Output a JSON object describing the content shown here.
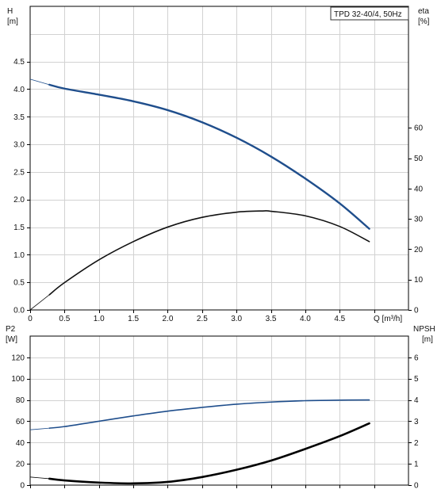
{
  "chart_data": [
    {
      "type": "line",
      "title": "TPD 32-40/4, 50Hz",
      "xlabel": "Q [m³/h]",
      "ylabel_left_name": "H",
      "ylabel_left_unit": "[m]",
      "ylabel_right_name": "eta",
      "ylabel_right_unit": "[%]",
      "xlim": [
        0,
        5.5
      ],
      "ylim_left": [
        0,
        5.5
      ],
      "ylim_right": [
        0,
        100
      ],
      "x_ticks": [
        "0",
        "0.5",
        "1.0",
        "1.5",
        "2.0",
        "2.5",
        "3.0",
        "3.5",
        "4.0",
        "4.5"
      ],
      "y_ticks_left": [
        "0.0",
        "0.5",
        "1.0",
        "1.5",
        "2.0",
        "2.5",
        "3.0",
        "3.5",
        "4.0",
        "4.5"
      ],
      "y_ticks_right": [
        "0",
        "10",
        "20",
        "30",
        "40",
        "50",
        "60"
      ],
      "grid": true,
      "series": [
        {
          "axis": "left",
          "color": "#1f4e8c",
          "thin_segment_x": [
            0.0,
            0.28
          ],
          "x": [
            0.0,
            0.28,
            0.5,
            1.0,
            1.5,
            2.0,
            2.5,
            3.0,
            3.5,
            4.0,
            4.5,
            4.93
          ],
          "y": [
            4.18,
            4.08,
            4.01,
            3.9,
            3.78,
            3.62,
            3.4,
            3.12,
            2.78,
            2.38,
            1.93,
            1.47
          ]
        },
        {
          "axis": "right",
          "color": "#111111",
          "thin_segment_x": [
            0.0,
            0.28
          ],
          "x": [
            0.0,
            0.28,
            0.5,
            1.0,
            1.5,
            2.0,
            2.5,
            3.0,
            3.38,
            3.5,
            4.0,
            4.5,
            4.93
          ],
          "y": [
            0,
            5,
            9,
            16.5,
            22.5,
            27.3,
            30.5,
            32.2,
            32.6,
            32.5,
            31.0,
            27.5,
            22.5
          ]
        }
      ]
    },
    {
      "type": "line",
      "xlabel": "",
      "ylabel_left_name": "P2",
      "ylabel_left_unit": "[W]",
      "ylabel_right_name": "NPSH",
      "ylabel_right_unit": "[m]",
      "xlim": [
        0,
        5.5
      ],
      "ylim_left": [
        0,
        140
      ],
      "ylim_right": [
        0,
        7
      ],
      "y_ticks_left": [
        "0",
        "20",
        "40",
        "60",
        "80",
        "100",
        "120"
      ],
      "y_ticks_right": [
        "0",
        "1",
        "2",
        "3",
        "4",
        "5",
        "6"
      ],
      "grid": true,
      "series": [
        {
          "axis": "left",
          "color": "#1f4e8c",
          "thin_segment_x": [
            0.0,
            0.28
          ],
          "x": [
            0.0,
            0.28,
            0.5,
            1.0,
            1.5,
            2.0,
            2.5,
            3.0,
            3.5,
            4.0,
            4.5,
            4.93
          ],
          "y": [
            52,
            53.5,
            55,
            60,
            65,
            69.5,
            73,
            76,
            78,
            79.3,
            79.8,
            80
          ]
        },
        {
          "axis": "right",
          "color": "#000000",
          "thin_segment_x": [
            0.0,
            0.28
          ],
          "x": [
            0.0,
            0.28,
            0.5,
            1.0,
            1.5,
            2.0,
            2.5,
            3.0,
            3.5,
            4.0,
            4.5,
            4.93
          ],
          "y": [
            0.38,
            0.3,
            0.22,
            0.12,
            0.08,
            0.15,
            0.38,
            0.72,
            1.15,
            1.7,
            2.3,
            2.9
          ]
        }
      ]
    }
  ]
}
